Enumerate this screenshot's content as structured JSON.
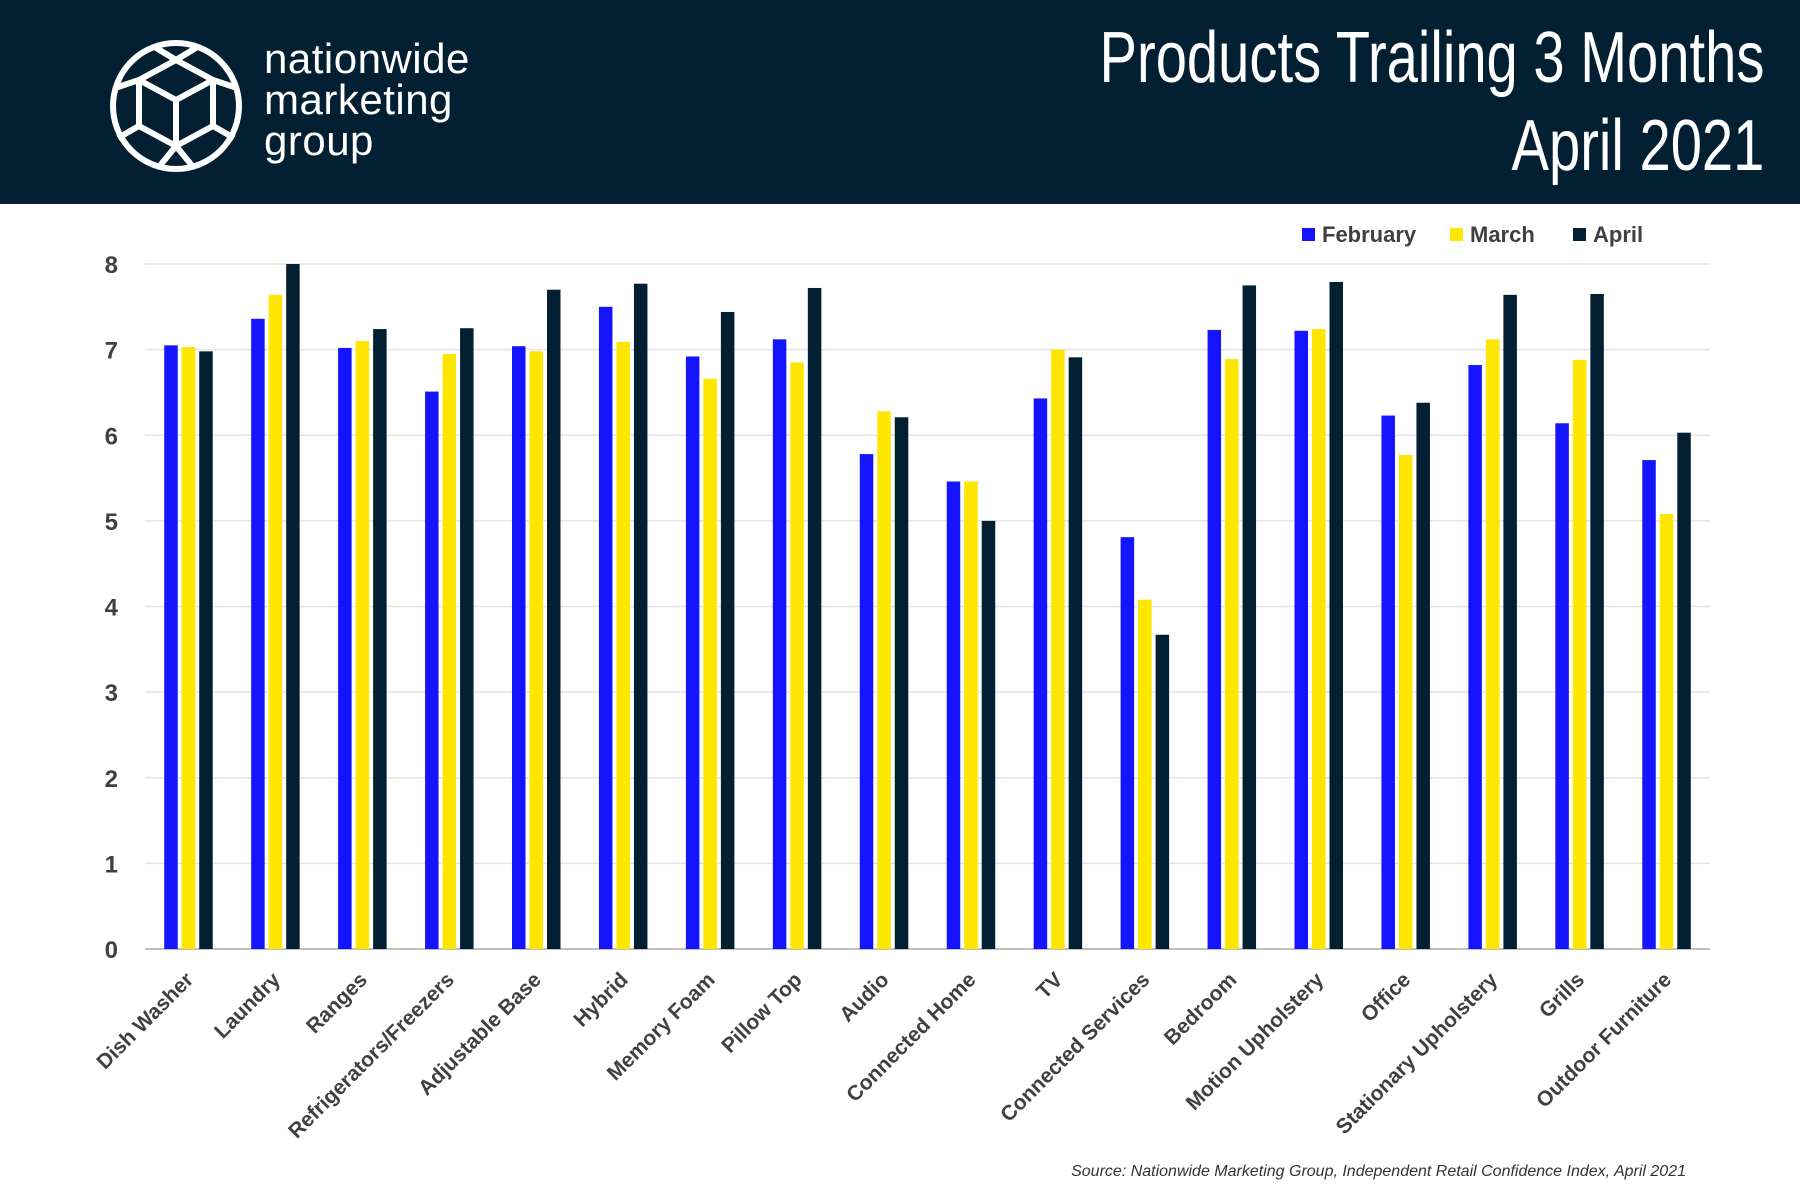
{
  "header": {
    "brand_lines": [
      "nationwide",
      "marketing",
      "group"
    ],
    "title_line1": "Products Trailing 3 Months",
    "title_line2": "April 2021",
    "background": "#032033"
  },
  "source": "Source: Nationwide Marketing Group, Independent Retail Confidence Index, April 2021",
  "chart_data": {
    "type": "bar",
    "categories": [
      "Dish Washer",
      "Laundry",
      "Ranges",
      "Refrigerators/Freezers",
      "Adjustable Base",
      "Hybrid",
      "Memory Foam",
      "Pillow Top",
      "Audio",
      "Connected Home",
      "TV",
      "Connected Services",
      "Bedroom",
      "Motion Upholstery",
      "Office",
      "Stationary Upholstery",
      "Grills",
      "Outdoor Furniture"
    ],
    "series": [
      {
        "name": "February",
        "color": "#1414FF",
        "values": [
          7.05,
          7.36,
          7.02,
          6.51,
          7.04,
          7.5,
          6.92,
          7.12,
          5.78,
          5.46,
          6.43,
          4.81,
          7.23,
          7.22,
          6.23,
          6.82,
          6.14,
          5.71
        ]
      },
      {
        "name": "March",
        "color": "#FFE600",
        "values": [
          7.03,
          7.64,
          7.1,
          6.95,
          6.98,
          7.09,
          6.66,
          6.85,
          6.28,
          5.46,
          7.0,
          4.08,
          6.89,
          7.24,
          5.77,
          7.12,
          6.88,
          5.08
        ]
      },
      {
        "name": "April",
        "color": "#032033",
        "values": [
          6.98,
          8.0,
          7.24,
          7.25,
          7.7,
          7.77,
          7.44,
          7.72,
          6.21,
          5.0,
          6.91,
          3.67,
          7.75,
          7.79,
          6.38,
          7.64,
          7.65,
          6.03
        ]
      }
    ],
    "yticks": [
      "0",
      "1",
      "2",
      "3",
      "4",
      "5",
      "6",
      "7",
      "8"
    ],
    "ylim": [
      0,
      8
    ],
    "grid": true,
    "legend_position": "top-right"
  }
}
